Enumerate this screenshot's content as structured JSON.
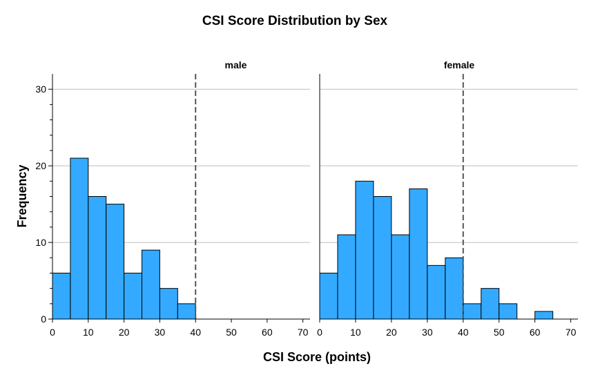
{
  "chart_data": {
    "type": "bar",
    "title": "CSI Score Distribution by Sex",
    "xlabel": "CSI Score (points)",
    "ylabel": "Frequency",
    "xlim": [
      0,
      72
    ],
    "ylim": [
      0,
      32
    ],
    "bin_width": 5,
    "x_ticks": [
      0,
      10,
      20,
      30,
      40,
      50,
      60,
      70
    ],
    "x_tick_labels": [
      "0",
      "10",
      "20",
      "30",
      "40",
      "50",
      "60",
      "70"
    ],
    "y_ticks": [
      0,
      10,
      20,
      30
    ],
    "y_tick_labels": [
      "0",
      "10",
      "20",
      "30"
    ],
    "grid": "horizontal",
    "bar_color": "#33aaff",
    "bar_edge_color": "#000000",
    "reference_line": {
      "x": 40,
      "style": "dashed",
      "color": "#555555"
    },
    "panels": [
      {
        "name": "male",
        "bins": [
          {
            "x0": 0,
            "x1": 5,
            "count": 6
          },
          {
            "x0": 5,
            "x1": 10,
            "count": 21
          },
          {
            "x0": 10,
            "x1": 15,
            "count": 16
          },
          {
            "x0": 15,
            "x1": 20,
            "count": 15
          },
          {
            "x0": 20,
            "x1": 25,
            "count": 6
          },
          {
            "x0": 25,
            "x1": 30,
            "count": 9
          },
          {
            "x0": 30,
            "x1": 35,
            "count": 4
          },
          {
            "x0": 35,
            "x1": 40,
            "count": 2
          }
        ]
      },
      {
        "name": "female",
        "bins": [
          {
            "x0": 0,
            "x1": 5,
            "count": 6
          },
          {
            "x0": 5,
            "x1": 10,
            "count": 11
          },
          {
            "x0": 10,
            "x1": 15,
            "count": 18
          },
          {
            "x0": 15,
            "x1": 20,
            "count": 16
          },
          {
            "x0": 20,
            "x1": 25,
            "count": 11
          },
          {
            "x0": 25,
            "x1": 30,
            "count": 17
          },
          {
            "x0": 30,
            "x1": 35,
            "count": 7
          },
          {
            "x0": 35,
            "x1": 40,
            "count": 8
          },
          {
            "x0": 40,
            "x1": 45,
            "count": 2
          },
          {
            "x0": 45,
            "x1": 50,
            "count": 4
          },
          {
            "x0": 50,
            "x1": 55,
            "count": 2
          },
          {
            "x0": 60,
            "x1": 65,
            "count": 1
          }
        ]
      }
    ]
  }
}
